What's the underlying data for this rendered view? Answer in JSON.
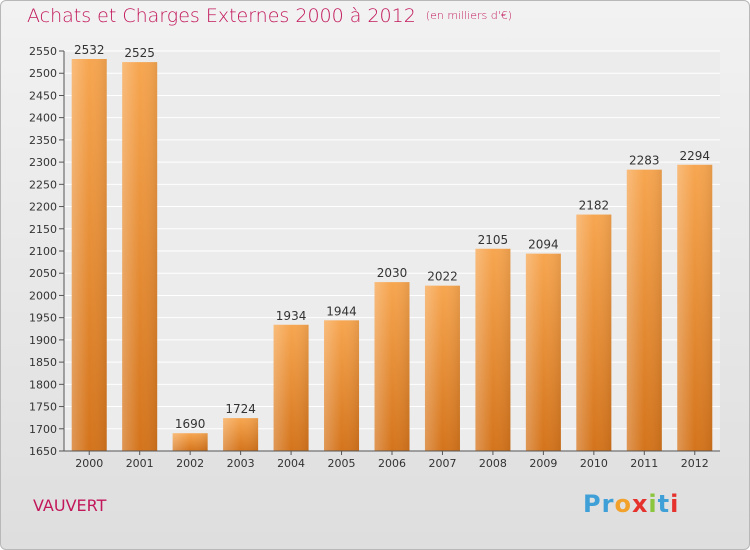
{
  "chart_data": {
    "type": "bar",
    "title": "Achats et Charges Externes 2000 à 2012",
    "subtitle": "(en milliers d'€)",
    "categories": [
      "2000",
      "2001",
      "2002",
      "2003",
      "2004",
      "2005",
      "2006",
      "2007",
      "2008",
      "2009",
      "2010",
      "2011",
      "2012"
    ],
    "values": [
      2532,
      2525,
      1690,
      1724,
      1934,
      1944,
      2030,
      2022,
      2105,
      2094,
      2182,
      2283,
      2294
    ],
    "ylim": [
      1650,
      2550
    ],
    "yticks": [
      1650,
      1700,
      1750,
      1800,
      1850,
      1900,
      1950,
      2000,
      2050,
      2100,
      2150,
      2200,
      2250,
      2300,
      2350,
      2400,
      2450,
      2500,
      2550
    ],
    "grid": true,
    "xlabel": "",
    "ylabel": ""
  },
  "commune": "VAUVERT",
  "logo": [
    "P",
    "r",
    "o",
    "x",
    "i",
    "t",
    "i"
  ],
  "colors": {
    "title": "#c2185b",
    "bar_light": "#f7a650",
    "bar_dark": "#d4741c",
    "logo": [
      "#3fa0d8",
      "#3fa0d8",
      "#f2a12b",
      "#e5322d",
      "#8cc63f",
      "#3fa0d8",
      "#e5322d"
    ]
  }
}
